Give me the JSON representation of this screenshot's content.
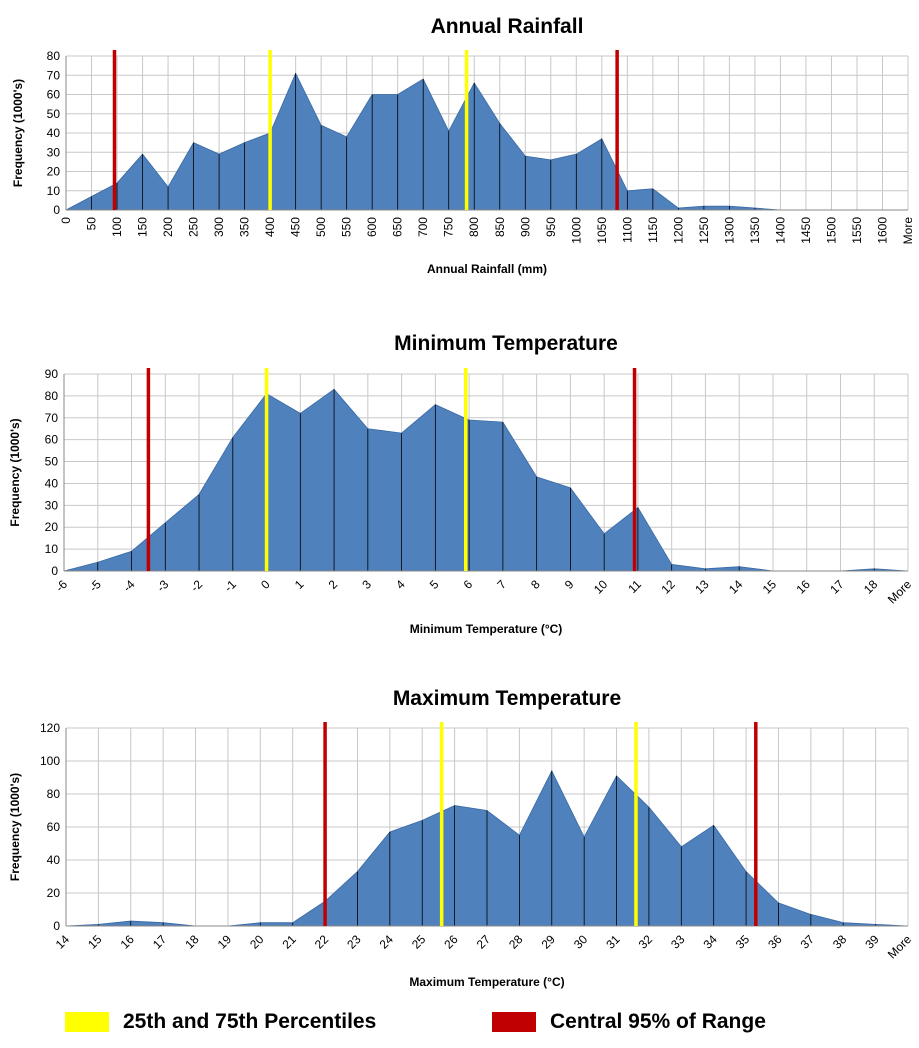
{
  "colors": {
    "area_fill": "#4f81bd",
    "percentile": "#ffff00",
    "range": "#c00000",
    "grid": "#c8c8c8",
    "divider": "#000000"
  },
  "legend": {
    "percentiles_label": "25th and 75th Percentiles",
    "range_label": "Central 95% of Range"
  },
  "chart_data": [
    {
      "type": "area",
      "title": "Annual Rainfall",
      "xlabel": "Annual Rainfall (mm)",
      "ylabel": "Frequency (1000's)",
      "categories": [
        "0",
        "50",
        "100",
        "150",
        "200",
        "250",
        "300",
        "350",
        "400",
        "450",
        "500",
        "550",
        "600",
        "650",
        "700",
        "750",
        "800",
        "850",
        "900",
        "950",
        "1000",
        "1050",
        "1100",
        "1150",
        "1200",
        "1250",
        "1300",
        "1350",
        "1400",
        "1450",
        "1500",
        "1550",
        "1600",
        "More"
      ],
      "values": [
        0,
        7,
        14,
        29,
        12,
        35,
        29,
        35,
        40,
        71,
        44,
        38,
        60,
        60,
        68,
        41,
        66,
        45,
        28,
        26,
        29,
        37,
        10,
        11,
        1,
        2,
        2,
        1,
        0,
        0,
        0,
        0,
        0,
        0
      ],
      "ylim": [
        0,
        80
      ],
      "yticks": [
        0,
        10,
        20,
        30,
        40,
        50,
        60,
        70,
        80
      ],
      "percentile_markers": [
        400,
        785
      ],
      "range_markers": [
        95,
        1080
      ],
      "tick_rotation": -90,
      "grid": true
    },
    {
      "type": "area",
      "title": "Minimum Temperature",
      "xlabel": "Minimum Temperature (°C)",
      "ylabel": "Frequency (1000's)",
      "categories": [
        "-6",
        "-5",
        "-4",
        "-3",
        "-2",
        "-1",
        "0",
        "1",
        "2",
        "3",
        "4",
        "5",
        "6",
        "7",
        "8",
        "9",
        "10",
        "11",
        "12",
        "13",
        "14",
        "15",
        "16",
        "17",
        "18",
        "More"
      ],
      "values": [
        0,
        4,
        9,
        22,
        35,
        61,
        81,
        72,
        83,
        65,
        63,
        76,
        69,
        68,
        43,
        38,
        17,
        29,
        3,
        1,
        2,
        0,
        0,
        0,
        1,
        0
      ],
      "ylim": [
        0,
        90
      ],
      "yticks": [
        0,
        10,
        20,
        30,
        40,
        50,
        60,
        70,
        80,
        90
      ],
      "percentile_markers": [
        0,
        5.9
      ],
      "range_markers": [
        -3.5,
        10.9
      ],
      "tick_rotation": -45,
      "grid": true
    },
    {
      "type": "area",
      "title": "Maximum Temperature",
      "xlabel": "Maximum Temperature (°C)",
      "ylabel": "Frequency (1000's)",
      "categories": [
        "14",
        "15",
        "16",
        "17",
        "18",
        "19",
        "20",
        "21",
        "22",
        "23",
        "24",
        "25",
        "26",
        "27",
        "28",
        "29",
        "30",
        "31",
        "32",
        "33",
        "34",
        "35",
        "36",
        "37",
        "38",
        "39",
        "More"
      ],
      "values": [
        0,
        1,
        3,
        2,
        0,
        0,
        2,
        2,
        15,
        33,
        57,
        64,
        73,
        70,
        55,
        94,
        54,
        91,
        72,
        48,
        61,
        33,
        14,
        7,
        2,
        1,
        0
      ],
      "ylim": [
        0,
        120
      ],
      "yticks": [
        0,
        20,
        40,
        60,
        80,
        100,
        120
      ],
      "percentile_markers": [
        25.6,
        31.6
      ],
      "range_markers": [
        22,
        35.3
      ],
      "tick_rotation": -45,
      "grid": true
    }
  ]
}
